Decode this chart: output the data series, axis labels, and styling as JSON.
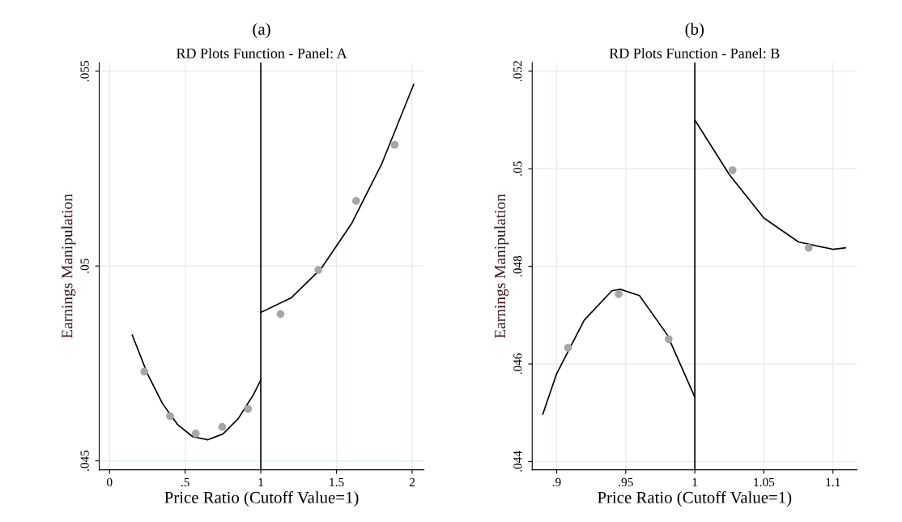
{
  "chart_data": [
    {
      "type": "scatter",
      "title": "(a)",
      "subtitle": "RD Plots Function - Panel: A",
      "xlabel": "Price Ratio (Cutoff Value=1)",
      "ylabel": "Earnings Manipulation",
      "xlim": [
        -0.068,
        2.078
      ],
      "ylim": [
        0.04477,
        0.05522
      ],
      "xticks": [
        0,
        {
          "value": 0.5,
          "label": ".5"
        },
        1,
        1.5,
        2
      ],
      "yticks": [
        {
          "value": 0.045,
          "label": ".045"
        },
        {
          "value": 0.05,
          "label": ".05"
        },
        {
          "value": 0.055,
          "label": ".055"
        }
      ],
      "grid": true,
      "ref_lines": [
        {
          "axis": "x",
          "value": 1,
          "color": "#000000"
        }
      ],
      "series": [
        {
          "marker": "circle",
          "color": "#a6a6a6",
          "x": [
            0.23,
            0.4,
            0.57,
            0.745,
            0.915,
            1.13,
            1.38,
            1.63,
            1.885
          ],
          "values": [
            0.04729,
            0.04615,
            0.0457,
            0.04587,
            0.04633,
            0.04877,
            0.0499,
            0.05167,
            0.05311
          ]
        },
        {
          "type": "line",
          "color": "#000000",
          "x": [
            0.15,
            0.25,
            0.35,
            0.45,
            0.55,
            0.65,
            0.75,
            0.85,
            0.95,
            1.0
          ],
          "values": [
            0.04823,
            0.04724,
            0.04647,
            0.04593,
            0.04562,
            0.04554,
            0.04569,
            0.04608,
            0.04669,
            0.04708
          ]
        },
        {
          "type": "line",
          "color": "#000000",
          "x": [
            1.0,
            1.2,
            1.4,
            1.6,
            1.8,
            2.01
          ],
          "values": [
            0.04881,
            0.04918,
            0.04994,
            0.05109,
            0.05263,
            0.05466
          ]
        }
      ]
    },
    {
      "type": "scatter",
      "title": "(b)",
      "subtitle": "RD Plots Function - Panel: B",
      "xlabel": "Price Ratio (Cutoff Value=1)",
      "ylabel": "Earnings Manipulation",
      "xlim": [
        0.8823,
        1.1173
      ],
      "ylim": [
        0.04383,
        0.052176
      ],
      "xticks": [
        {
          "value": 0.9,
          "label": ".9"
        },
        {
          "value": 0.95,
          "label": ".95"
        },
        1,
        1.05,
        1.1
      ],
      "yticks": [
        {
          "value": 0.044,
          "label": ".044"
        },
        {
          "value": 0.046,
          "label": ".046"
        },
        {
          "value": 0.048,
          "label": ".048"
        },
        {
          "value": 0.05,
          "label": ".05"
        },
        {
          "value": 0.052,
          "label": ".052"
        }
      ],
      "grid": true,
      "ref_lines": [
        {
          "axis": "x",
          "value": 1,
          "color": "#000000"
        }
      ],
      "series": [
        {
          "marker": "circle",
          "color": "#a6a6a6",
          "x": [
            0.9083,
            0.9449,
            0.9811,
            1.0273,
            1.0824
          ],
          "values": [
            0.04633,
            0.04743,
            0.04651,
            0.04997,
            0.04838
          ]
        },
        {
          "type": "line",
          "color": "#000000",
          "x": [
            0.89,
            0.9,
            0.92,
            0.94,
            0.946,
            0.96,
            0.98,
            1.0
          ],
          "values": [
            0.04497,
            0.0458,
            0.0469,
            0.0475,
            0.04753,
            0.0474,
            0.0466,
            0.04532
          ]
        },
        {
          "type": "line",
          "color": "#000000",
          "x": [
            1.0,
            1.025,
            1.05,
            1.075,
            1.1,
            1.109
          ],
          "values": [
            0.051,
            0.04988,
            0.04899,
            0.0485,
            0.04835,
            0.04838
          ]
        }
      ]
    }
  ]
}
